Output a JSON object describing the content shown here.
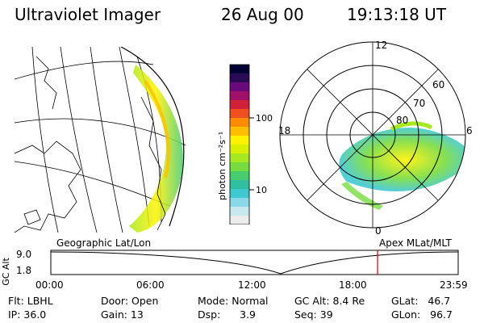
{
  "header": {
    "instrument": "Ultraviolet Imager",
    "date": "26 Aug 00",
    "time": "19:13:18 UT"
  },
  "left_map": {
    "label": "Geographic Lat/Lon"
  },
  "colorbar": {
    "unit_label": "photon cm⁻²s⁻¹",
    "ticks": [
      "100",
      "10"
    ],
    "colors": [
      "#000033",
      "#2a0a55",
      "#6a0a7a",
      "#a0106a",
      "#d0203a",
      "#f05020",
      "#ff8c00",
      "#ffbf00",
      "#fff200",
      "#d8f000",
      "#a8e820",
      "#78dc40",
      "#48cc70",
      "#30c0a0",
      "#40c8d0",
      "#8ad8e8",
      "#c8e8f0",
      "#ececec"
    ]
  },
  "polar_plot": {
    "label": "Apex MLat/MLT",
    "mlt_labels": {
      "top": "12",
      "bottom": "0",
      "left": "18",
      "right": "6"
    },
    "lat_labels": [
      "60",
      "70",
      "80"
    ]
  },
  "altitude_plot": {
    "ylabel": "GC Alt",
    "yticks": [
      "9.0",
      "1.8"
    ],
    "xticks": [
      "00:00",
      "06:00",
      "12:00",
      "18:00",
      "23:59"
    ],
    "marker_color": "#cc0000"
  },
  "info": {
    "flt": "Flt: LBHL",
    "ip": "IP: 36.0",
    "door": "Door: Open",
    "gain": "Gain: 13",
    "mode": "Mode: Normal",
    "dsp": "Dsp:      3.9",
    "gc_alt": "GC Alt: 8.4 Re",
    "seq": "Seq: 39",
    "glat": "GLat:   46.7",
    "glon": "GLon:   96.7"
  }
}
